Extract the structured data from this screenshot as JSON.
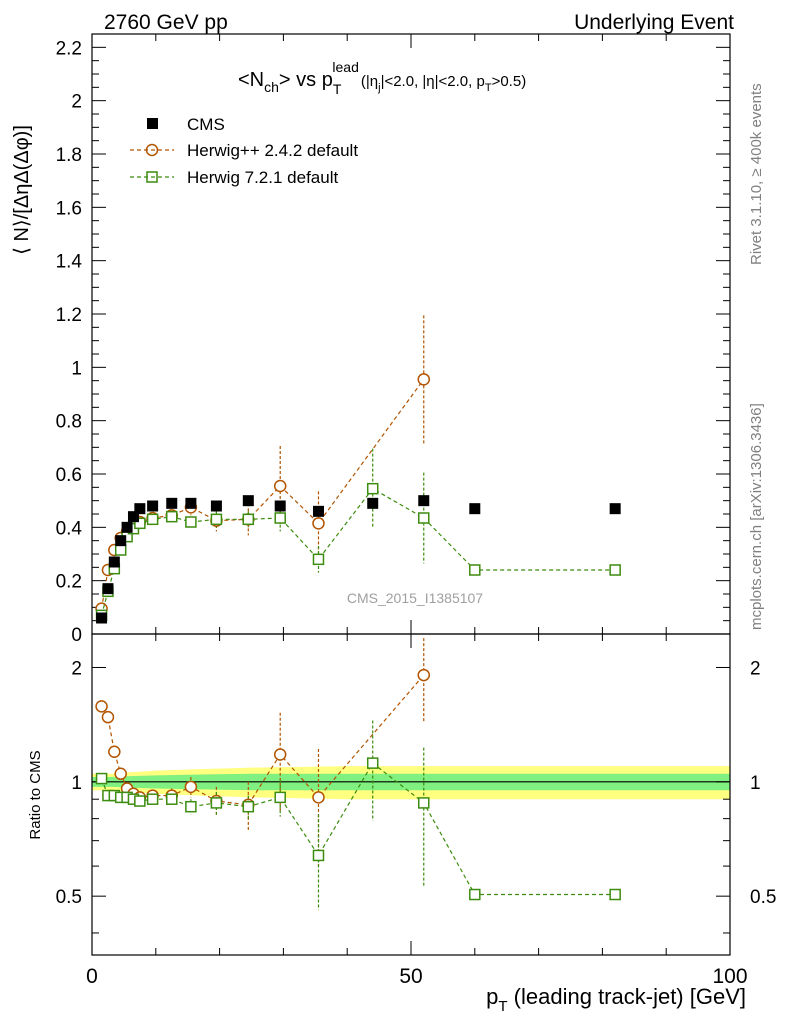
{
  "header": {
    "left_label": "2760 GeV pp",
    "right_label": "Underlying Event"
  },
  "title": {
    "observable": "<N",
    "observable_sub": "ch",
    "observable_close": "> vs p",
    "p_sub": "T",
    "p_sup": "lead",
    "cuts": "(|η",
    "cuts_sub1": "j",
    "cuts_mid": "|<2.0, |η|<2.0, p",
    "cuts_sub2": "T",
    "cuts_end": ">0.5)"
  },
  "side_labels": {
    "rivet": "Rivet 3.1.10, ≥ 400k events",
    "mcplots": "mcplots.cern.ch [arXiv:1306.3436]"
  },
  "watermark": "CMS_2015_I1385107",
  "legend": [
    {
      "name": "CMS",
      "marker": "filled-square",
      "color": "#000000"
    },
    {
      "name": "Herwig++ 2.4.2 default",
      "marker": "open-circle",
      "color": "#b25400"
    },
    {
      "name": "Herwig 7.2.1 default",
      "marker": "open-square",
      "color": "#3c8c0f"
    }
  ],
  "chart_data": {
    "type": "scatter",
    "xlabel": "p",
    "xlabel_sub": "T",
    "xlabel_rest": " (leading track-jet) [GeV]",
    "ylabel": "⟨ N⟩/[ΔηΔ(Δφ)]",
    "ratio_ylabel": "Ratio to CMS",
    "xlim": [
      0,
      100
    ],
    "ylim": [
      0,
      2.25
    ],
    "ratio_ylim": [
      0.35,
      2.45
    ],
    "ratio_scale": "log",
    "x_ticks": [
      "0",
      "50",
      "100"
    ],
    "x_tick_values": [
      0,
      50,
      100
    ],
    "y_ticks": [
      "0",
      "0.2",
      "0.4",
      "0.6",
      "0.8",
      "1",
      "1.2",
      "1.4",
      "1.6",
      "1.8",
      "2",
      "2.2"
    ],
    "y_tick_values": [
      0,
      0.2,
      0.4,
      0.6,
      0.8,
      1.0,
      1.2,
      1.4,
      1.6,
      1.8,
      2.0,
      2.2
    ],
    "ratio_ticks": [
      "0.5",
      "1",
      "2"
    ],
    "ratio_tick_values": [
      0.5,
      1,
      2
    ],
    "data": {
      "name": "CMS",
      "x": [
        1.5,
        2.5,
        3.5,
        4.5,
        5.5,
        6.5,
        7.5,
        9.5,
        12.5,
        15.5,
        19.5,
        24.5,
        29.5,
        35.5,
        44,
        52,
        60,
        82
      ],
      "y": [
        0.06,
        0.17,
        0.27,
        0.35,
        0.4,
        0.44,
        0.47,
        0.48,
        0.49,
        0.49,
        0.48,
        0.5,
        0.48,
        0.46,
        0.49,
        0.5,
        0.47,
        0.47
      ]
    },
    "series": [
      {
        "name": "Herwig++ 2.4.2 default",
        "x": [
          1.5,
          2.5,
          3.5,
          4.5,
          5.5,
          6.5,
          7.5,
          9.5,
          12.5,
          15.5,
          19.5,
          24.5,
          29.5,
          35.5,
          52
        ],
        "y": [
          0.095,
          0.24,
          0.315,
          0.36,
          0.385,
          0.405,
          0.42,
          0.435,
          0.445,
          0.475,
          0.425,
          0.43,
          0.555,
          0.415,
          0.955
        ],
        "yerr": [
          0.005,
          0.01,
          0.01,
          0.01,
          0.01,
          0.01,
          0.01,
          0.01,
          0.02,
          0.03,
          0.04,
          0.06,
          0.15,
          0.12,
          0.24
        ],
        "ratio": [
          1.58,
          1.48,
          1.2,
          1.05,
          0.96,
          0.93,
          0.91,
          0.92,
          0.92,
          0.97,
          0.89,
          0.87,
          1.18,
          0.91,
          1.91
        ],
        "ratio_err": [
          0.01,
          0.01,
          0.02,
          0.02,
          0.02,
          0.02,
          0.02,
          0.02,
          0.04,
          0.06,
          0.08,
          0.13,
          0.34,
          0.31,
          0.48
        ]
      },
      {
        "name": "Herwig 7.2.1 default",
        "x": [
          1.5,
          2.5,
          3.5,
          4.5,
          5.5,
          6.5,
          7.5,
          9.5,
          12.5,
          15.5,
          19.5,
          24.5,
          29.5,
          35.5,
          44,
          52,
          60,
          82
        ],
        "y": [
          0.07,
          0.16,
          0.245,
          0.315,
          0.365,
          0.395,
          0.415,
          0.43,
          0.44,
          0.42,
          0.43,
          0.43,
          0.435,
          0.28,
          0.545,
          0.435,
          0.24,
          0.24
        ],
        "yerr": [
          0.005,
          0.01,
          0.01,
          0.01,
          0.01,
          0.01,
          0.01,
          0.01,
          0.02,
          0.02,
          0.03,
          0.03,
          0.05,
          0.05,
          0.15,
          0.17,
          0.005,
          0.005
        ],
        "ratio": [
          1.02,
          0.92,
          0.92,
          0.91,
          0.91,
          0.9,
          0.89,
          0.9,
          0.9,
          0.86,
          0.88,
          0.86,
          0.91,
          0.64,
          1.12,
          0.88,
          0.505,
          0.505
        ],
        "ratio_err": [
          0.01,
          0.01,
          0.01,
          0.01,
          0.01,
          0.01,
          0.01,
          0.01,
          0.03,
          0.04,
          0.06,
          0.06,
          0.1,
          0.18,
          0.33,
          0.35,
          0.005,
          0.005
        ]
      }
    ],
    "ratio_band": {
      "x": [
        0,
        3,
        6,
        10,
        17,
        25,
        40,
        60,
        100
      ],
      "inner": [
        0.03,
        0.03,
        0.035,
        0.04,
        0.045,
        0.05,
        0.05,
        0.05,
        0.05
      ],
      "outer": [
        0.05,
        0.05,
        0.06,
        0.07,
        0.08,
        0.09,
        0.1,
        0.1,
        0.1
      ]
    }
  },
  "colors": {
    "cms": "#000000",
    "herwig_pp": "#b25400",
    "herwig7": "#3c8c0f",
    "band_inner": "#80f080",
    "band_outer": "#ffff80",
    "side_text": "#808080",
    "watermark": "#a0a0a0"
  }
}
